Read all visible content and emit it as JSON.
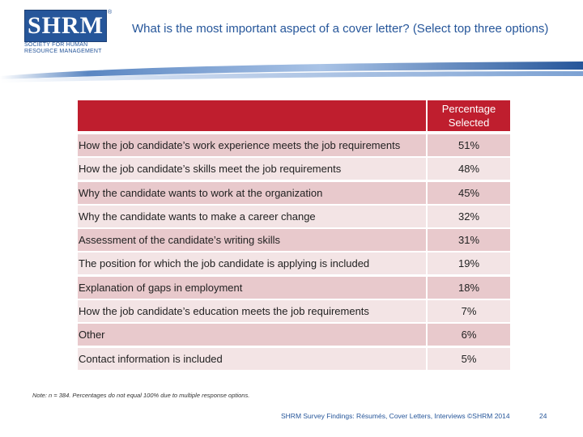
{
  "logo": {
    "mark": "SHRM",
    "registered": "®",
    "subtitle": "Society for Human Resource Management"
  },
  "slide": {
    "title": "What is the most important aspect of a cover letter? (Select top three options)"
  },
  "table": {
    "column_header": "Percentage Selected",
    "rows": [
      {
        "label": "How the job candidate’s work experience meets the job requirements",
        "value": "51%"
      },
      {
        "label": "How the job candidate’s skills meet the job requirements",
        "value": "48%"
      },
      {
        "label": "Why the candidate wants to work at the organization",
        "value": "45%"
      },
      {
        "label": "Why the candidate wants to make a career change",
        "value": "32%"
      },
      {
        "label": "Assessment of the candidate’s writing skills",
        "value": "31%"
      },
      {
        "label": "The position for which the job candidate is applying is included",
        "value": "19%"
      },
      {
        "label": "Explanation of gaps in employment",
        "value": "18%"
      },
      {
        "label": "How the job candidate’s education meets the job requirements",
        "value": "7%"
      },
      {
        "label": "Other",
        "value": "6%"
      },
      {
        "label": "Contact information is included",
        "value": "5%"
      }
    ]
  },
  "note": "Note: n = 384. Percentages do not equal 100% due to multiple response options.",
  "footer": {
    "text": "SHRM Survey Findings: Résumés, Cover Letters, Interviews ©SHRM 2014",
    "page_number": "24"
  },
  "colors": {
    "brand_blue": "#26569a",
    "header_red": "#bf1e2e",
    "row_dark": "#e8c9cc",
    "row_light": "#f3e4e5"
  }
}
